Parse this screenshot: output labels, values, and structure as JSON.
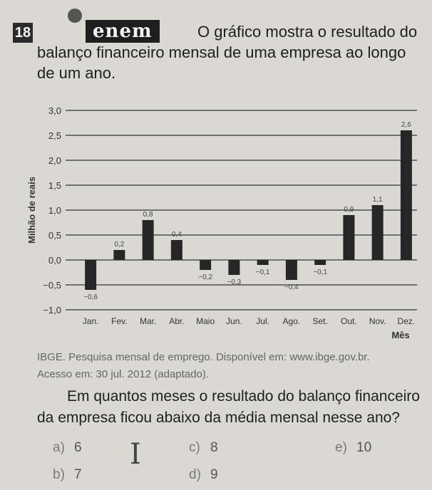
{
  "question_number": "18",
  "logo_text": "enem",
  "intro_text": "O gráfico mostra o resultado do balanço financeiro mensal de uma empresa ao longo de um ano.",
  "chart_data": {
    "type": "bar",
    "ylabel": "Milhão de reais",
    "xlabel": "Mês",
    "ylim": [
      -1.0,
      3.0
    ],
    "yticks": [
      "3,0",
      "2,5",
      "2,0",
      "1,5",
      "1,0",
      "0,5",
      "0,0",
      "−0,5",
      "−1,0"
    ],
    "categories": [
      "Jan.",
      "Fev.",
      "Mar.",
      "Abr.",
      "Maio",
      "Jun.",
      "Jul.",
      "Ago.",
      "Set.",
      "Out.",
      "Nov.",
      "Dez."
    ],
    "values": [
      -0.6,
      0.2,
      0.8,
      0.4,
      -0.2,
      -0.3,
      -0.1,
      -0.4,
      -0.1,
      0.9,
      1.1,
      2.6
    ],
    "data_labels": [
      "−0,6",
      "0,2",
      "0,8",
      "0,4",
      "−0,2",
      "−0,3",
      "−0,1",
      "−0,4",
      "−0,1",
      "0,9",
      "1,1",
      "2,6"
    ],
    "grid": true,
    "bar_color": "#262626"
  },
  "source_line1": "IBGE. Pesquisa mensal de emprego. Disponível em: www.ibge.gov.br.",
  "source_line2": "Acesso em: 30 jul. 2012 (adaptado).",
  "question_text": "Em quantos meses o resultado do balanço financeiro da empresa ficou abaixo da média mensal nesse ano?",
  "options": [
    {
      "letter": "a)",
      "text": "6"
    },
    {
      "letter": "b)",
      "text": "7"
    },
    {
      "letter": "c)",
      "text": "8"
    },
    {
      "letter": "d)",
      "text": "9"
    },
    {
      "letter": "e)",
      "text": "10"
    }
  ]
}
